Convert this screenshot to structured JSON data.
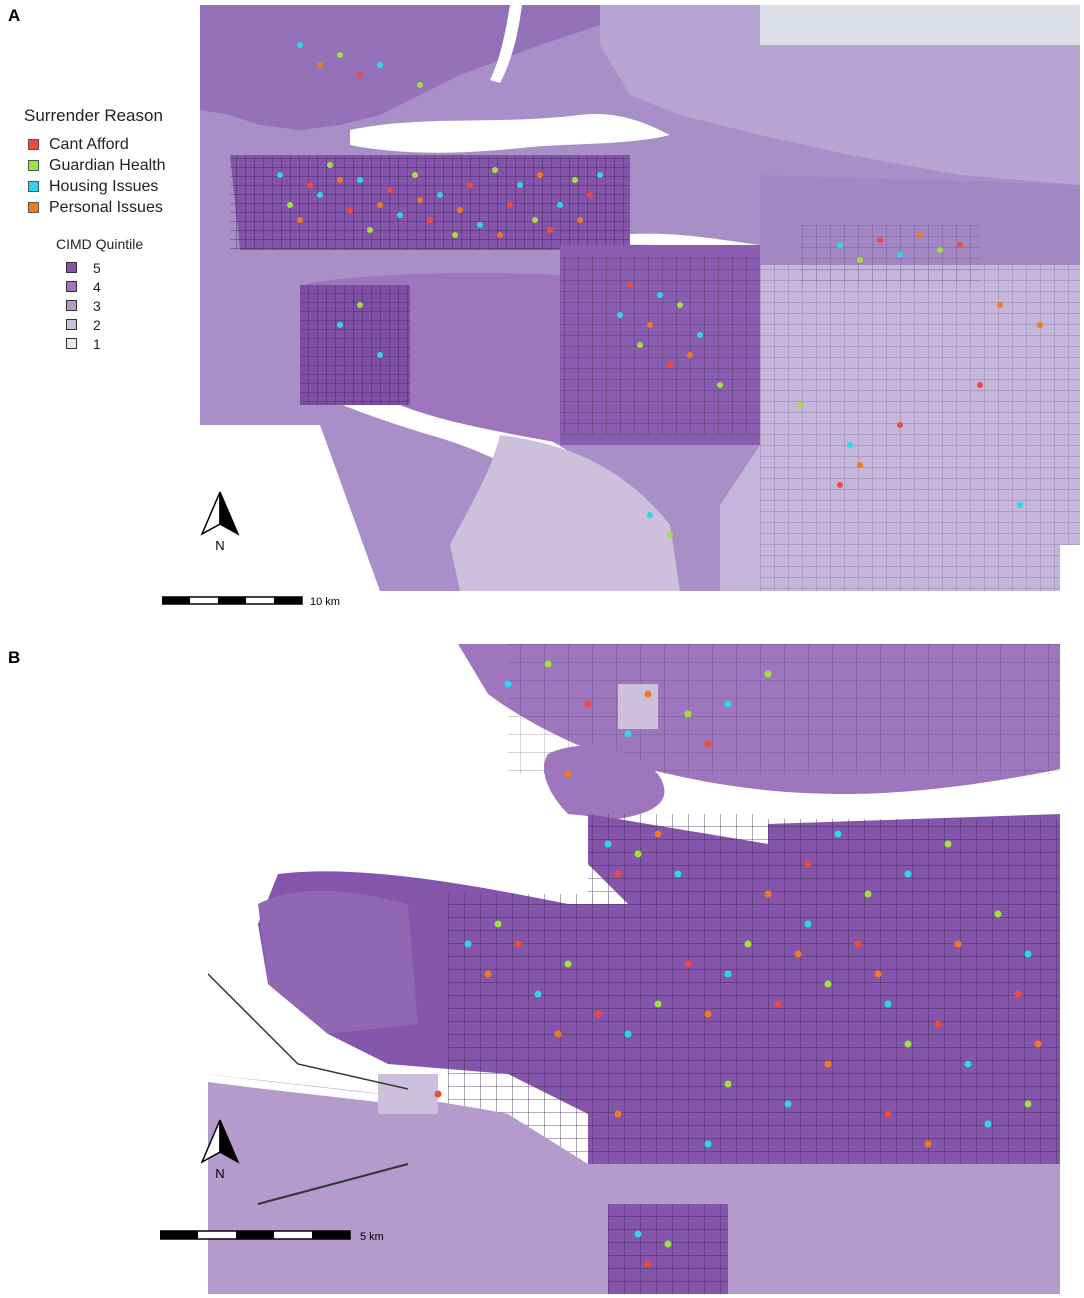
{
  "panels": [
    {
      "label": "A",
      "scale_text": "10 km",
      "north_text": "N"
    },
    {
      "label": "B",
      "scale_text": "5 km",
      "north_text": "N"
    }
  ],
  "legend": {
    "reason_title": "Surrender Reason",
    "reasons": [
      {
        "label": "Cant Afford",
        "color": "#f04a3e"
      },
      {
        "label": "Guardian Health",
        "color": "#9ee23c"
      },
      {
        "label": "Housing Issues",
        "color": "#2ad8ee"
      },
      {
        "label": "Personal Issues",
        "color": "#f07a1f"
      }
    ],
    "quintile_title": "CIMD Quintile",
    "quintiles": [
      {
        "label": "5",
        "color": "#8554ab"
      },
      {
        "label": "4",
        "color": "#9d76bd"
      },
      {
        "label": "3",
        "color": "#b49bcc"
      },
      {
        "label": "2",
        "color": "#ccc0dc"
      },
      {
        "label": "1",
        "color": "#e6eaf0"
      }
    ]
  }
}
